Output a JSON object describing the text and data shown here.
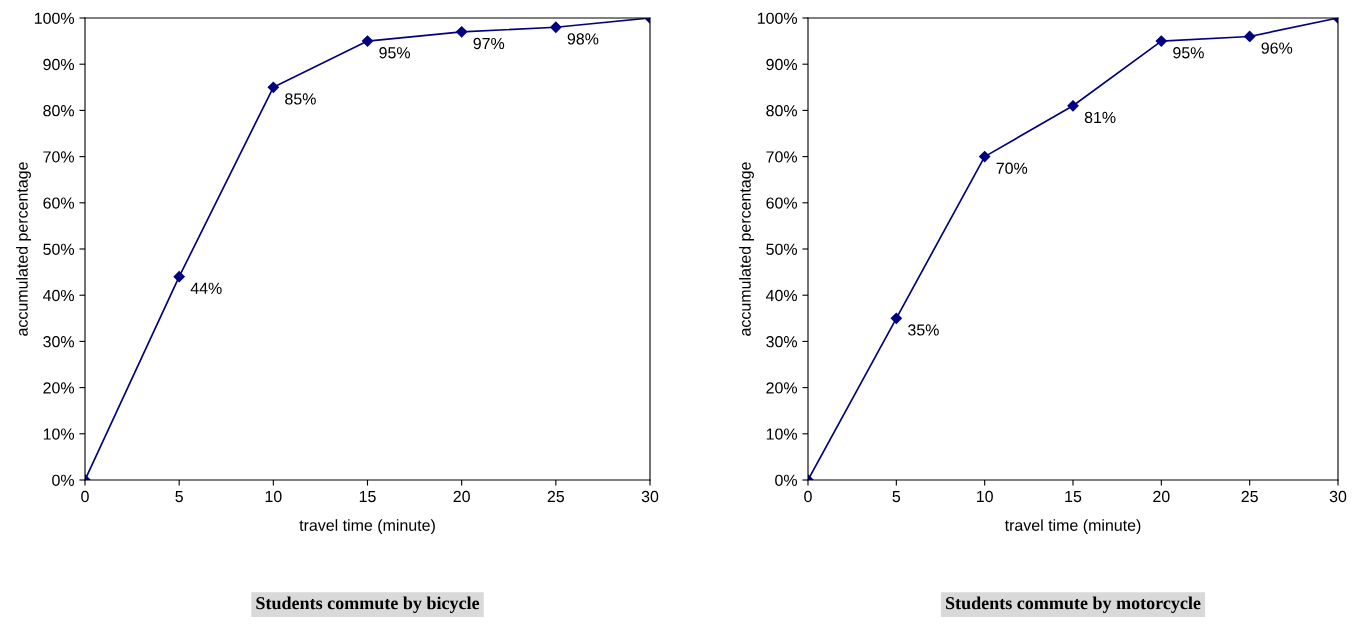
{
  "chart_data": [
    {
      "type": "line",
      "title": "Students commute by bicycle",
      "xlabel": "travel time (minute)",
      "ylabel": "accumulated percentage",
      "x": [
        0,
        5,
        10,
        15,
        20,
        25,
        30
      ],
      "series": [
        {
          "color": "#000080",
          "values": [
            0,
            44,
            85,
            95,
            97,
            98,
            100
          ],
          "value_labels": [
            null,
            "44%",
            "85%",
            "95%",
            "97%",
            "98%",
            null
          ]
        }
      ],
      "xlim": [
        0,
        30
      ],
      "xticks": [
        0,
        5,
        10,
        15,
        20,
        25,
        30
      ],
      "ylim": [
        0,
        100
      ],
      "yticks": [
        {
          "value": 0,
          "label": "0%"
        },
        {
          "value": 10,
          "label": "10%"
        },
        {
          "value": 20,
          "label": "20%"
        },
        {
          "value": 30,
          "label": "30%"
        },
        {
          "value": 40,
          "label": "40%"
        },
        {
          "value": 50,
          "label": "50%"
        },
        {
          "value": 60,
          "label": "60%"
        },
        {
          "value": 70,
          "label": "70%"
        },
        {
          "value": 80,
          "label": "80%"
        },
        {
          "value": 90,
          "label": "90%"
        },
        {
          "value": 100,
          "label": "100%"
        }
      ],
      "grid": false,
      "legend": false,
      "marker": "diamond",
      "line_style": "solid"
    },
    {
      "type": "line",
      "title": "Students commute by motorcycle",
      "xlabel": "travel time (minute)",
      "ylabel": "accumulated percentage",
      "x": [
        0,
        5,
        10,
        15,
        20,
        25,
        30
      ],
      "series": [
        {
          "color": "#000080",
          "values": [
            0,
            35,
            70,
            81,
            95,
            96,
            100
          ],
          "value_labels": [
            null,
            "35%",
            "70%",
            "81%",
            "95%",
            "96%",
            null
          ]
        }
      ],
      "xlim": [
        0,
        30
      ],
      "xticks": [
        0,
        5,
        10,
        15,
        20,
        25,
        30
      ],
      "ylim": [
        0,
        100
      ],
      "yticks": [
        {
          "value": 0,
          "label": "0%"
        },
        {
          "value": 10,
          "label": "10%"
        },
        {
          "value": 20,
          "label": "20%"
        },
        {
          "value": 30,
          "label": "30%"
        },
        {
          "value": 40,
          "label": "40%"
        },
        {
          "value": 50,
          "label": "50%"
        },
        {
          "value": 60,
          "label": "60%"
        },
        {
          "value": 70,
          "label": "70%"
        },
        {
          "value": 80,
          "label": "80%"
        },
        {
          "value": 90,
          "label": "90%"
        },
        {
          "value": 100,
          "label": "100%"
        }
      ],
      "grid": false,
      "legend": false,
      "marker": "diamond",
      "line_style": "solid"
    }
  ]
}
